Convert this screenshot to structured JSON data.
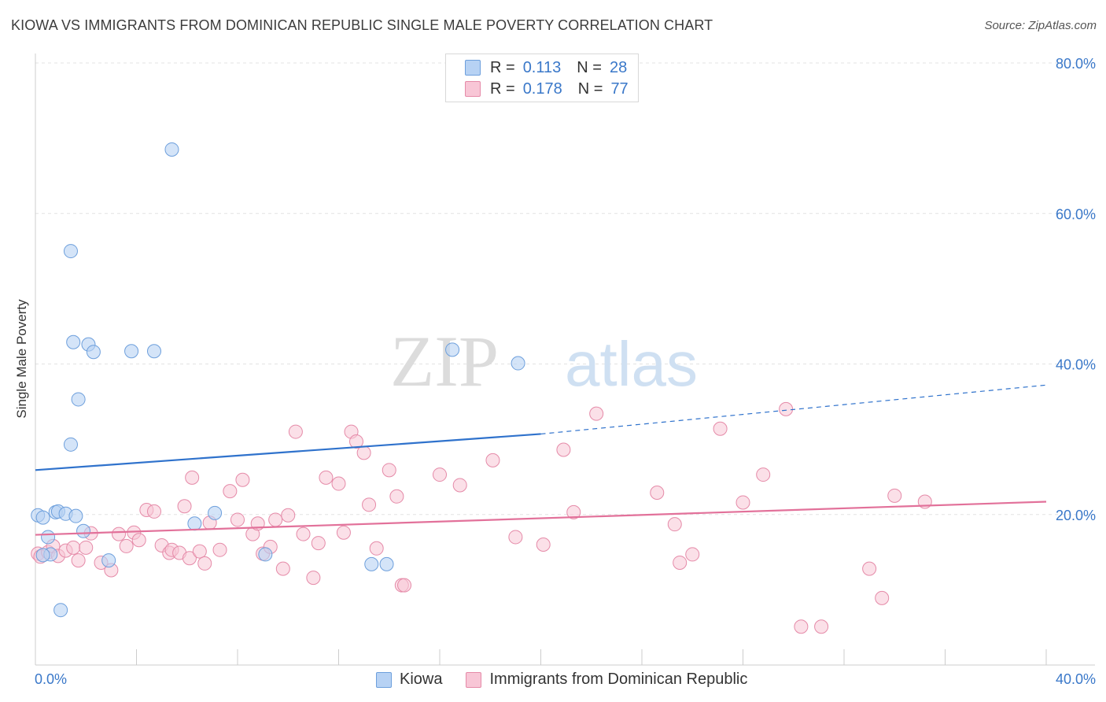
{
  "title": "KIOWA VS IMMIGRANTS FROM DOMINICAN REPUBLIC SINGLE MALE POVERTY CORRELATION CHART",
  "source": "Source: ZipAtlas.com",
  "watermark": {
    "zip": "ZIP",
    "atlas": "atlas"
  },
  "legend": {
    "rows": [
      {
        "r_label": "R =",
        "r_value": "0.113",
        "n_label": "N =",
        "n_value": "28"
      },
      {
        "r_label": "R =",
        "r_value": "0.178",
        "n_label": "N =",
        "n_value": "77"
      }
    ]
  },
  "bottom_legend": [
    "Kiowa",
    "Immigrants from Dominican Republic"
  ],
  "colors": {
    "kiowa_fill": "#b7d2f4",
    "kiowa_stroke": "#6d9fdc",
    "kiowa_line": "#2f72cc",
    "dr_fill": "#f8c6d6",
    "dr_stroke": "#e58aa8",
    "dr_line": "#e2719a",
    "tick_label": "#3a78c9",
    "grid": "#e3e3e3"
  },
  "chart_data": {
    "type": "scatter",
    "title": "KIOWA VS IMMIGRANTS FROM DOMINICAN REPUBLIC SINGLE MALE POVERTY CORRELATION CHART",
    "xlabel": "",
    "ylabel": "Single Male Poverty",
    "xlim": [
      0,
      40
    ],
    "ylim": [
      0,
      80
    ],
    "x_tick_labels": [
      "0.0%",
      "40.0%"
    ],
    "y_tick_labels": [
      "20.0%",
      "40.0%",
      "60.0%",
      "80.0%"
    ],
    "y_ticks": [
      20,
      40,
      60,
      80
    ],
    "grid": true,
    "legend_position": "top-center",
    "series": [
      {
        "name": "Kiowa",
        "r": 0.113,
        "n": 28,
        "trend": {
          "x": [
            0,
            20
          ],
          "y": [
            25.9,
            30.7
          ],
          "dashed_to": [
            40,
            37.2
          ]
        },
        "points": [
          [
            0.1,
            19.9
          ],
          [
            0.3,
            19.6
          ],
          [
            0.8,
            20.3
          ],
          [
            0.9,
            20.4
          ],
          [
            1.2,
            20.1
          ],
          [
            1.6,
            19.8
          ],
          [
            0.6,
            14.7
          ],
          [
            0.5,
            17.0
          ],
          [
            1.0,
            7.3
          ],
          [
            1.4,
            29.3
          ],
          [
            1.7,
            35.3
          ],
          [
            1.5,
            42.9
          ],
          [
            2.1,
            42.6
          ],
          [
            2.3,
            41.6
          ],
          [
            3.8,
            41.7
          ],
          [
            4.7,
            41.7
          ],
          [
            1.4,
            55.0
          ],
          [
            5.4,
            68.5
          ],
          [
            1.9,
            17.8
          ],
          [
            2.9,
            13.9
          ],
          [
            6.3,
            18.8
          ],
          [
            7.1,
            20.2
          ],
          [
            9.1,
            14.7
          ],
          [
            13.3,
            13.4
          ],
          [
            13.9,
            13.4
          ],
          [
            16.5,
            41.9
          ],
          [
            19.1,
            40.1
          ],
          [
            0.3,
            14.6
          ]
        ]
      },
      {
        "name": "Immigrants from Dominican Republic",
        "r": 0.178,
        "n": 77,
        "trend": {
          "x": [
            0,
            40
          ],
          "y": [
            17.3,
            21.7
          ]
        },
        "points": [
          [
            0.1,
            14.8
          ],
          [
            0.2,
            14.4
          ],
          [
            0.5,
            15.0
          ],
          [
            0.7,
            15.8
          ],
          [
            0.9,
            14.5
          ],
          [
            1.2,
            15.2
          ],
          [
            1.5,
            15.6
          ],
          [
            1.7,
            13.9
          ],
          [
            2.0,
            15.6
          ],
          [
            2.2,
            17.5
          ],
          [
            2.6,
            13.6
          ],
          [
            3.0,
            12.6
          ],
          [
            3.3,
            17.4
          ],
          [
            3.6,
            15.8
          ],
          [
            3.9,
            17.6
          ],
          [
            4.1,
            16.6
          ],
          [
            4.4,
            20.6
          ],
          [
            4.7,
            20.4
          ],
          [
            5.0,
            15.9
          ],
          [
            5.3,
            14.9
          ],
          [
            5.4,
            15.3
          ],
          [
            5.7,
            14.9
          ],
          [
            5.9,
            21.1
          ],
          [
            6.1,
            14.2
          ],
          [
            6.2,
            24.9
          ],
          [
            6.5,
            15.1
          ],
          [
            6.7,
            13.5
          ],
          [
            6.9,
            18.9
          ],
          [
            7.3,
            15.3
          ],
          [
            7.7,
            23.1
          ],
          [
            8.0,
            19.3
          ],
          [
            8.2,
            24.6
          ],
          [
            8.6,
            17.4
          ],
          [
            8.8,
            18.8
          ],
          [
            9.0,
            14.8
          ],
          [
            9.3,
            15.7
          ],
          [
            9.5,
            19.3
          ],
          [
            9.8,
            12.8
          ],
          [
            10.0,
            19.9
          ],
          [
            10.3,
            31.0
          ],
          [
            10.6,
            17.4
          ],
          [
            11.0,
            11.6
          ],
          [
            11.2,
            16.2
          ],
          [
            11.5,
            24.9
          ],
          [
            12.0,
            24.1
          ],
          [
            12.2,
            17.6
          ],
          [
            12.5,
            31.0
          ],
          [
            12.7,
            29.7
          ],
          [
            13.0,
            28.2
          ],
          [
            13.2,
            21.3
          ],
          [
            13.5,
            15.5
          ],
          [
            14.0,
            25.9
          ],
          [
            14.3,
            22.4
          ],
          [
            14.5,
            10.6
          ],
          [
            14.6,
            10.6
          ],
          [
            16.0,
            25.3
          ],
          [
            16.8,
            23.9
          ],
          [
            18.1,
            27.2
          ],
          [
            19.0,
            17.0
          ],
          [
            20.1,
            16.0
          ],
          [
            20.9,
            28.6
          ],
          [
            21.3,
            20.3
          ],
          [
            22.2,
            33.4
          ],
          [
            24.6,
            22.9
          ],
          [
            25.3,
            18.7
          ],
          [
            25.5,
            13.6
          ],
          [
            26.0,
            14.7
          ],
          [
            27.1,
            31.4
          ],
          [
            28.0,
            21.6
          ],
          [
            28.8,
            25.3
          ],
          [
            29.7,
            34.0
          ],
          [
            30.3,
            5.1
          ],
          [
            31.1,
            5.1
          ],
          [
            33.0,
            12.8
          ],
          [
            33.5,
            8.9
          ],
          [
            34.0,
            22.5
          ],
          [
            35.2,
            21.7
          ]
        ]
      }
    ]
  }
}
